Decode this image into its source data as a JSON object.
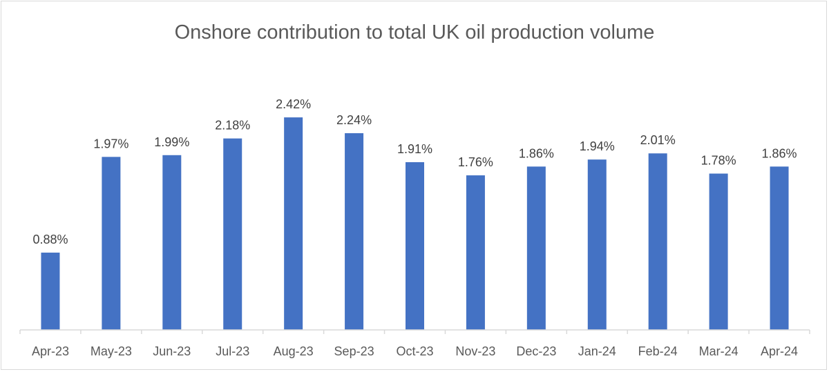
{
  "chart_data": {
    "type": "bar",
    "title": "Onshore contribution to total UK oil production volume",
    "xlabel": "",
    "ylabel": "",
    "categories": [
      "Apr-23",
      "May-23",
      "Jun-23",
      "Jul-23",
      "Aug-23",
      "Sep-23",
      "Oct-23",
      "Nov-23",
      "Dec-23",
      "Jan-24",
      "Feb-24",
      "Mar-24",
      "Apr-24"
    ],
    "values": [
      0.88,
      1.97,
      1.99,
      2.18,
      2.42,
      2.24,
      1.91,
      1.76,
      1.86,
      1.94,
      2.01,
      1.78,
      1.86
    ],
    "data_labels": [
      "0.88%",
      "1.97%",
      "1.99%",
      "2.18%",
      "2.42%",
      "2.24%",
      "1.91%",
      "1.76%",
      "1.86%",
      "1.94%",
      "2.01%",
      "1.78%",
      "1.86%"
    ],
    "unit": "%",
    "ylim": [
      0,
      2.9
    ],
    "grid": false,
    "legend": "none",
    "bar_color": "#4472C4"
  }
}
